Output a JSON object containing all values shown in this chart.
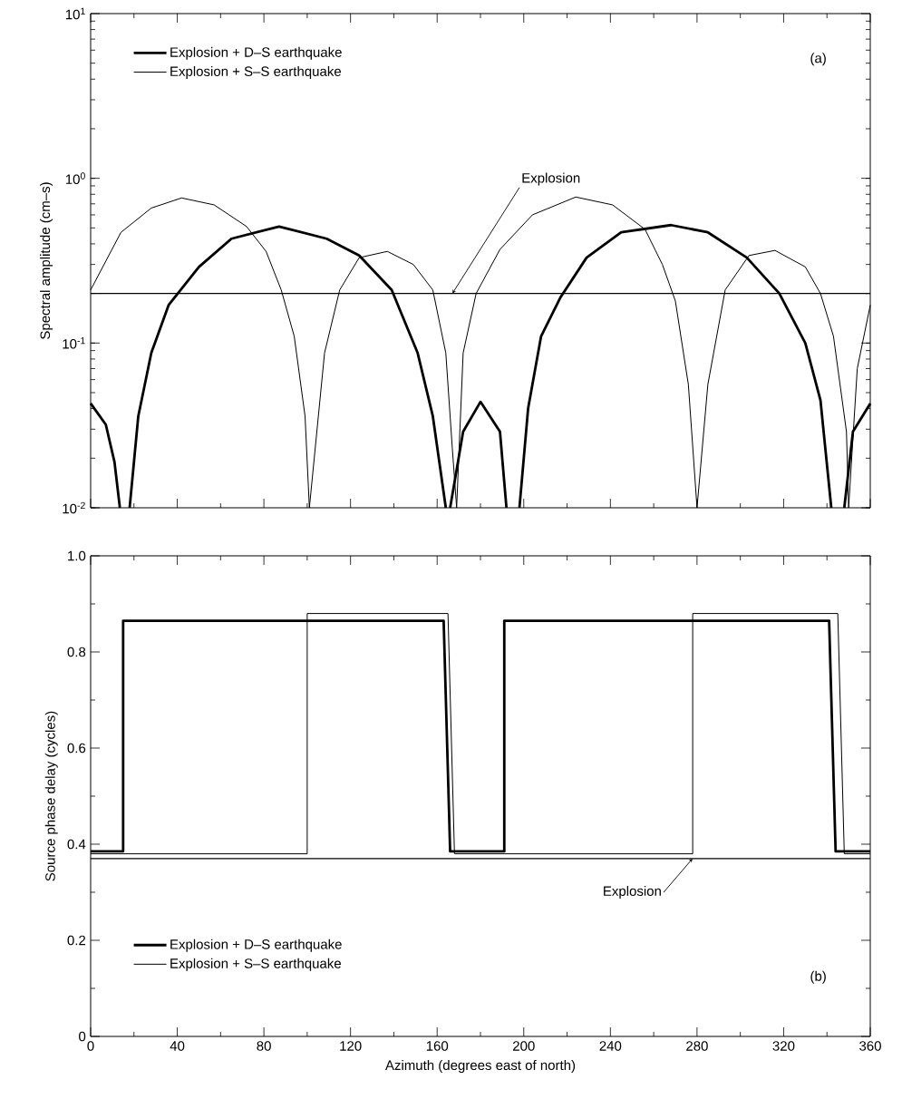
{
  "chart_data": [
    {
      "type": "line",
      "ylabel": "Spectral amplitude (cm–s)",
      "log": "y",
      "legend": "top left",
      "tick_labels": "y",
      "xlim": [
        0,
        360
      ],
      "ylim": [
        0.01,
        10
      ],
      "xticks": [
        0,
        40,
        80,
        120,
        160,
        200,
        240,
        280,
        320,
        360
      ],
      "yticks": [
        {
          "value": 0.01,
          "label": "10$^{-2}$"
        },
        {
          "value": 0.1,
          "label": "10$^{-1}$"
        },
        {
          "value": 1,
          "label": "10$^{0}$"
        },
        {
          "value": 10,
          "label": "10$^{1}$"
        }
      ],
      "series": [
        {
          "name": "Explosion + D–S earthquake",
          "color": "#000000",
          "x": [
            0,
            7,
            11,
            13.5,
            15.7,
            18,
            22,
            28,
            36,
            50,
            65,
            87,
            109,
            124,
            139,
            151,
            158,
            164,
            165,
            166,
            172,
            180,
            189,
            192,
            195,
            198,
            202,
            208,
            217,
            229,
            245,
            268,
            285,
            303,
            318,
            330,
            337,
            342,
            345,
            348,
            352,
            360
          ],
          "values": [
            0.043,
            0.032,
            0.019,
            0.01,
            null,
            0.01,
            0.036,
            0.087,
            0.17,
            0.29,
            0.43,
            0.51,
            0.43,
            0.34,
            0.21,
            0.087,
            0.036,
            0.01,
            null,
            0.01,
            0.029,
            0.044,
            0.029,
            0.01,
            null,
            0.01,
            0.04,
            0.11,
            0.19,
            0.33,
            0.47,
            0.52,
            0.47,
            0.33,
            0.2,
            0.1,
            0.045,
            0.01,
            null,
            0.01,
            0.029,
            0.043
          ]
        },
        {
          "name": "Explosion + S–S earthquake",
          "color": "#000000",
          "x": [
            0,
            14,
            28,
            42,
            57,
            72,
            81,
            88,
            94,
            99,
            101,
            108,
            115,
            124,
            137,
            149,
            158,
            164,
            167,
            169,
            172,
            178,
            189,
            204,
            224,
            241,
            256,
            264,
            270,
            276,
            280,
            285,
            293,
            304,
            316,
            330,
            337,
            343,
            349,
            350,
            354,
            360
          ],
          "values": [
            0.21,
            0.47,
            0.66,
            0.76,
            0.69,
            0.51,
            0.36,
            0.21,
            0.11,
            0.036,
            0.01,
            0.087,
            0.21,
            0.33,
            0.36,
            0.3,
            0.21,
            0.087,
            0.023,
            0.01,
            0.087,
            0.2,
            0.37,
            0.6,
            0.77,
            0.69,
            0.49,
            0.3,
            0.18,
            0.056,
            0.01,
            0.056,
            0.21,
            0.34,
            0.365,
            0.29,
            0.2,
            0.11,
            0.029,
            0.01,
            0.07,
            0.17
          ]
        }
      ],
      "ref_lines": [
        {
          "axis": "y",
          "value": 0.2,
          "label": "Explosion",
          "color": "#000000"
        }
      ],
      "annotations": [
        "(a)"
      ]
    },
    {
      "type": "line",
      "xlabel": "Azimuth (degrees east of north)",
      "ylabel": "Source phase delay (cycles)",
      "legend": "bottom left",
      "xlim": [
        0,
        360
      ],
      "ylim": [
        0,
        1
      ],
      "xticks": [
        0,
        40,
        80,
        120,
        160,
        200,
        240,
        280,
        320,
        360
      ],
      "yticks": [
        0,
        0.2,
        0.4,
        0.6,
        0.8,
        {
          "value": 1,
          "label": "1.0"
        }
      ],
      "series": [
        {
          "name": "Explosion + D–S earthquake",
          "color": "#000000",
          "x": [
            0,
            15,
            15,
            163,
            166,
            191,
            191,
            341,
            344,
            360
          ],
          "values": [
            0.385,
            0.385,
            0.865,
            0.865,
            0.385,
            0.385,
            0.865,
            0.865,
            0.385,
            0.385
          ]
        },
        {
          "name": "Explosion + S–S earthquake",
          "color": "#000000",
          "x": [
            0,
            100,
            100,
            165,
            168,
            278,
            278,
            345,
            348,
            360
          ],
          "values": [
            0.38,
            0.38,
            0.88,
            0.88,
            0.38,
            0.38,
            0.88,
            0.88,
            0.38,
            0.38
          ]
        }
      ],
      "ref_lines": [
        {
          "axis": "y",
          "value": 0.37,
          "label": "Explosion",
          "color": "#000000"
        }
      ],
      "annotations": [
        "(b)"
      ]
    }
  ]
}
